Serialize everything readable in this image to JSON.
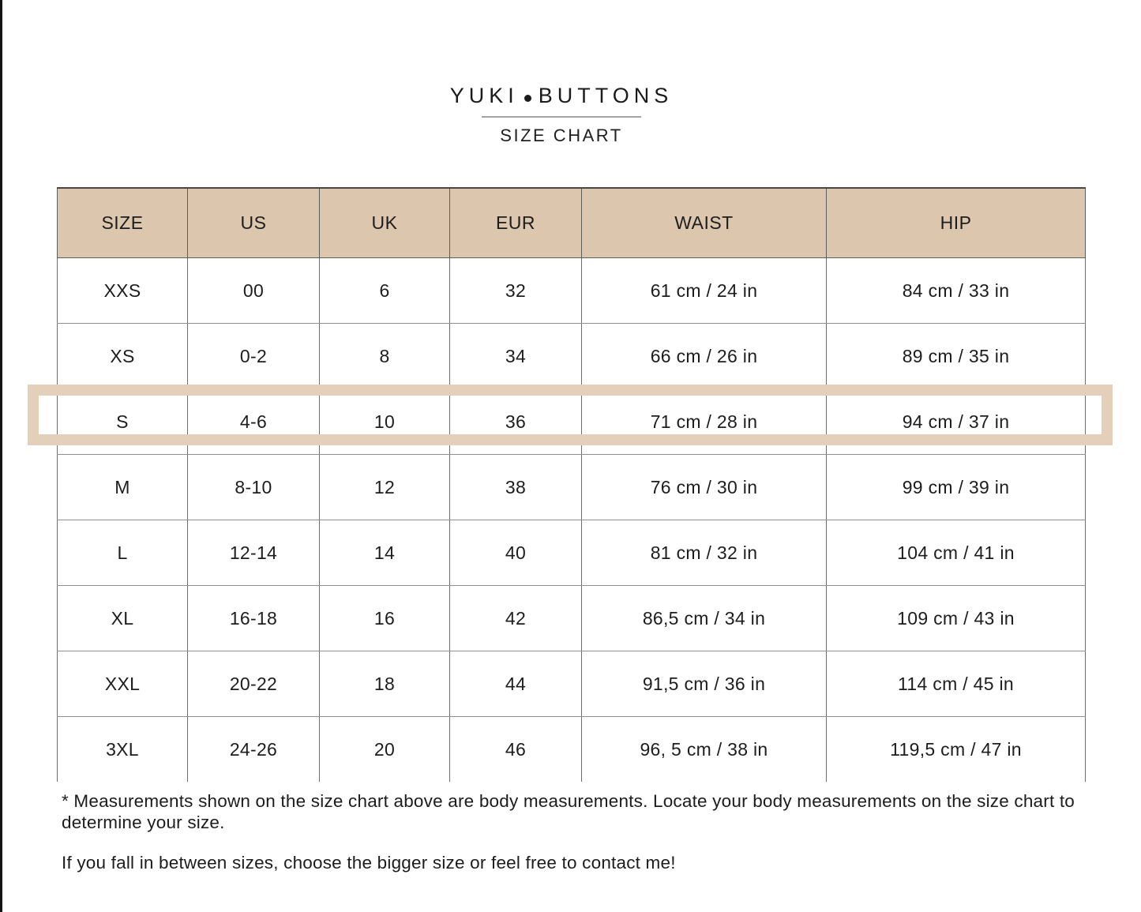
{
  "brand": {
    "name_left": "YUKI",
    "name_right": "BUTTONS",
    "subtitle": "SIZE CHART"
  },
  "table": {
    "headers": [
      "SIZE",
      "US",
      "UK",
      "EUR",
      "WAIST",
      "HIP"
    ],
    "rows": [
      [
        "XXS",
        "00",
        "6",
        "32",
        "61 cm / 24 in",
        "84 cm / 33 in"
      ],
      [
        "XS",
        "0-2",
        "8",
        "34",
        "66 cm / 26 in",
        "89 cm / 35 in"
      ],
      [
        "S",
        "4-6",
        "10",
        "36",
        "71 cm / 28 in",
        "94 cm / 37 in"
      ],
      [
        "M",
        "8-10",
        "12",
        "38",
        "76 cm / 30 in",
        "99 cm / 39 in"
      ],
      [
        "L",
        "12-14",
        "14",
        "40",
        "81 cm / 32 in",
        "104 cm / 41 in"
      ],
      [
        "XL",
        "16-18",
        "16",
        "42",
        "86,5 cm / 34 in",
        "109 cm / 43 in"
      ],
      [
        "XXL",
        "20-22",
        "18",
        "44",
        "91,5 cm / 36 in",
        "114 cm / 45 in"
      ],
      [
        "3XL",
        "24-26",
        "20",
        "46",
        "96, 5 cm / 38 in",
        "119,5 cm / 47 in"
      ]
    ],
    "highlighted_row_index": 2,
    "highlighted_size": "S"
  },
  "notes": {
    "note1": "* Measurements shown on the size chart above are body measurements. Locate your body measurements on the size chart to determine your size.",
    "note2": "If you fall in between sizes, choose the bigger size or feel free to contact me!"
  },
  "colors": {
    "header_background": "#dcc6ae",
    "highlight_border": "#e3cfba",
    "text": "#1d1d1d",
    "grid_line": "#8f8f8f",
    "left_rule": "#141414"
  }
}
